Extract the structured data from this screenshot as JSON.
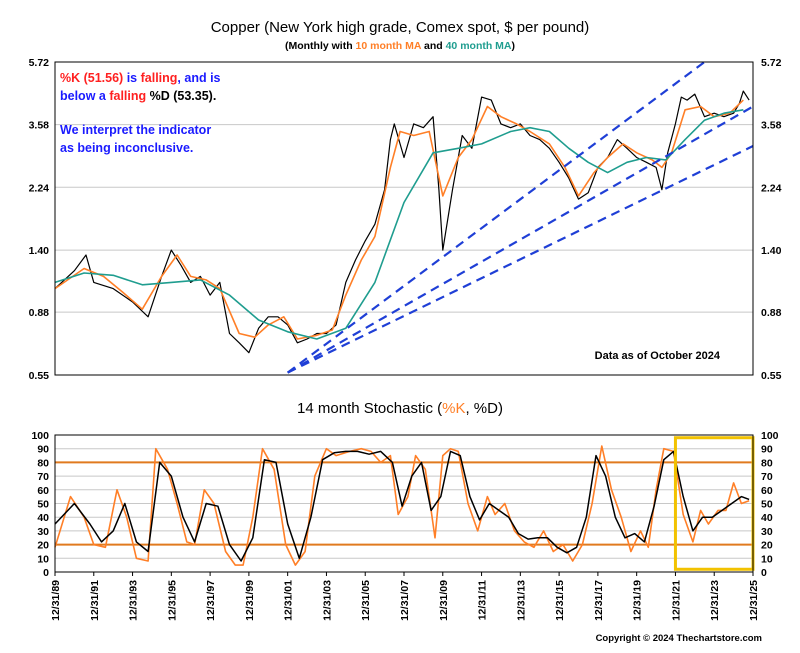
{
  "colors": {
    "background": "#ffffff",
    "price": "#000000",
    "ma10": "#ff7f27",
    "ma40": "#1f9d8f",
    "trendline": "#1f3fd6",
    "band": "#e07a1f",
    "highlight": "#f2c200",
    "grid": "#c8c8c8",
    "comment": "#1a1aff",
    "red": "#ff2020"
  },
  "texts": {
    "price_title": "Copper (New York high grade, Comex spot, $ per pound)",
    "sub_open": "(Monthly with ",
    "sub_ma10": "10 month MA",
    "sub_and": " and ",
    "sub_ma40": "40 month MA",
    "sub_close": ")",
    "stoch_title_a": "14 month Stochastic (",
    "stoch_title_b": "%K",
    "stoch_title_c": ", %D)",
    "data_as_of": "Data as of October 2024",
    "copyright": "Copyright © 2024 Thechartstore.com",
    "comment": {
      "l1a": "%K (51.56)",
      "l1b": " is ",
      "l1c": "falling",
      "l1d": ", and is",
      "l2a": "below a ",
      "l2b": "falling",
      "l2c": " %D (53.35).",
      "l3": "We interpret the indicator",
      "l4": "as being inconclusive."
    }
  },
  "chart_data": [
    {
      "type": "line",
      "title": "Copper (New York high grade, Comex spot, $ per pound)",
      "subtitle": "(Monthly with 10 month MA and 40 month MA)",
      "y_scale": "log",
      "ylim": [
        0.55,
        5.72
      ],
      "y_ticks": [
        "5.72",
        "3.58",
        "2.24",
        "1.40",
        "0.88",
        "0.55"
      ],
      "x_range": [
        1989.0,
        2025.0
      ],
      "grid": true,
      "series": [
        {
          "name": "Copper (monthly)",
          "x": [
            1989.0,
            1990.0,
            1990.6,
            1991.0,
            1992.0,
            1993.0,
            1993.8,
            1994.5,
            1995.0,
            1995.5,
            1996.0,
            1996.5,
            1997.0,
            1997.5,
            1998.0,
            1998.5,
            1999.0,
            1999.5,
            2000.0,
            2000.5,
            2001.0,
            2001.5,
            2002.0,
            2002.5,
            2003.0,
            2003.5,
            2004.0,
            2004.5,
            2005.0,
            2005.5,
            2006.0,
            2006.3,
            2006.5,
            2007.0,
            2007.5,
            2008.0,
            2008.5,
            2008.8,
            2009.0,
            2009.5,
            2010.0,
            2010.5,
            2011.0,
            2011.5,
            2012.0,
            2012.5,
            2013.0,
            2013.5,
            2014.0,
            2014.5,
            2015.0,
            2015.5,
            2016.0,
            2016.5,
            2017.0,
            2017.5,
            2018.0,
            2018.5,
            2019.0,
            2019.5,
            2020.0,
            2020.3,
            2020.6,
            2021.0,
            2021.3,
            2021.6,
            2022.0,
            2022.5,
            2023.0,
            2023.5,
            2024.0,
            2024.3,
            2024.5,
            2024.8
          ],
          "values": [
            1.05,
            1.2,
            1.35,
            1.1,
            1.05,
            0.95,
            0.85,
            1.15,
            1.4,
            1.25,
            1.1,
            1.15,
            1.0,
            1.1,
            0.75,
            0.7,
            0.65,
            0.78,
            0.85,
            0.85,
            0.8,
            0.7,
            0.72,
            0.75,
            0.75,
            0.8,
            1.1,
            1.3,
            1.5,
            1.7,
            2.2,
            3.2,
            3.6,
            2.8,
            3.6,
            3.5,
            3.8,
            2.2,
            1.4,
            2.2,
            3.3,
            3.0,
            4.4,
            4.3,
            3.6,
            3.5,
            3.6,
            3.3,
            3.2,
            3.0,
            2.7,
            2.4,
            2.05,
            2.15,
            2.6,
            2.8,
            3.2,
            3.0,
            2.8,
            2.7,
            2.6,
            2.2,
            2.9,
            3.6,
            4.4,
            4.3,
            4.5,
            3.8,
            3.9,
            3.8,
            3.9,
            4.2,
            4.6,
            4.3
          ]
        },
        {
          "name": "10 month MA",
          "x": [
            1989.0,
            1990.5,
            1991.5,
            1992.5,
            1993.5,
            1994.5,
            1995.3,
            1996.0,
            1996.8,
            1997.5,
            1998.5,
            1999.3,
            2000.0,
            2000.8,
            2001.5,
            2002.5,
            2003.3,
            2004.0,
            2004.8,
            2005.5,
            2006.3,
            2006.8,
            2007.5,
            2008.3,
            2009.0,
            2009.8,
            2010.5,
            2011.3,
            2012.0,
            2012.8,
            2013.5,
            2014.5,
            2015.3,
            2016.0,
            2016.8,
            2017.5,
            2018.3,
            2019.0,
            2019.8,
            2020.3,
            2020.8,
            2021.5,
            2022.3,
            2023.0,
            2023.8,
            2024.5
          ],
          "values": [
            1.05,
            1.22,
            1.15,
            1.02,
            0.9,
            1.15,
            1.35,
            1.15,
            1.12,
            1.05,
            0.75,
            0.73,
            0.8,
            0.85,
            0.72,
            0.74,
            0.77,
            1.0,
            1.3,
            1.55,
            2.6,
            3.4,
            3.3,
            3.4,
            2.1,
            2.8,
            3.2,
            4.1,
            3.8,
            3.6,
            3.4,
            3.1,
            2.6,
            2.1,
            2.5,
            2.8,
            3.1,
            2.9,
            2.75,
            2.6,
            2.9,
            4.0,
            4.1,
            3.8,
            3.9,
            4.3
          ]
        },
        {
          "name": "40 month MA",
          "x": [
            1989.0,
            1990.5,
            1992.0,
            1993.5,
            1995.0,
            1996.5,
            1998.0,
            1999.5,
            2001.0,
            2002.5,
            2004.0,
            2005.5,
            2007.0,
            2008.5,
            2009.8,
            2011.0,
            2012.5,
            2013.5,
            2014.5,
            2015.5,
            2016.5,
            2017.5,
            2018.5,
            2019.5,
            2020.5,
            2021.5,
            2022.5,
            2023.5,
            2024.5
          ],
          "values": [
            1.1,
            1.18,
            1.16,
            1.08,
            1.1,
            1.12,
            1.0,
            0.83,
            0.76,
            0.72,
            0.78,
            1.1,
            2.0,
            2.9,
            3.0,
            3.1,
            3.4,
            3.5,
            3.4,
            3.0,
            2.7,
            2.5,
            2.7,
            2.8,
            2.75,
            3.2,
            3.7,
            3.9,
            4.0
          ]
        }
      ],
      "trendlines": [
        {
          "x": [
            2001.0,
            2022.5
          ],
          "values": [
            0.56,
            5.72
          ]
        },
        {
          "x": [
            2001.0,
            2025.0
          ],
          "values": [
            0.56,
            4.1
          ]
        },
        {
          "x": [
            2001.0,
            2025.0
          ],
          "values": [
            0.56,
            3.05
          ]
        }
      ],
      "annotations": [
        "%K (51.56) is falling, and is below a falling %D (53.35).",
        "We interpret the indicator as being inconclusive.",
        "Data as of October 2024"
      ]
    },
    {
      "type": "line",
      "title": "14 month Stochastic (%K, %D)",
      "ylim": [
        0,
        100
      ],
      "y_ticks": [
        0,
        10,
        20,
        30,
        40,
        50,
        60,
        70,
        80,
        90,
        100
      ],
      "x_range": [
        1989.0,
        2025.0
      ],
      "x_tick_labels": [
        "12/31/89",
        "12/31/91",
        "12/31/93",
        "12/31/95",
        "12/31/97",
        "12/31/99",
        "12/31/01",
        "12/31/03",
        "12/31/05",
        "12/31/07",
        "12/31/09",
        "12/31/11",
        "12/31/13",
        "12/31/15",
        "12/31/17",
        "12/31/19",
        "12/31/21",
        "12/31/23",
        "12/31/25"
      ],
      "bands": [
        80,
        20
      ],
      "highlight": {
        "x": [
          2021.0,
          2025.0
        ],
        "y": [
          2,
          98
        ]
      },
      "grid": true,
      "series": [
        {
          "name": "%K",
          "x": [
            1989.0,
            1989.8,
            1990.5,
            1991.0,
            1991.6,
            1992.2,
            1992.7,
            1993.2,
            1993.8,
            1994.2,
            1994.8,
            1995.3,
            1995.8,
            1996.2,
            1996.7,
            1997.2,
            1997.8,
            1998.3,
            1998.7,
            1999.2,
            1999.7,
            2000.3,
            2000.9,
            2001.4,
            2001.9,
            2002.4,
            2003.0,
            2003.5,
            2004.2,
            2004.8,
            2005.3,
            2005.8,
            2006.3,
            2006.7,
            2007.2,
            2007.6,
            2008.1,
            2008.6,
            2009.0,
            2009.4,
            2009.8,
            2010.3,
            2010.8,
            2011.3,
            2011.7,
            2012.2,
            2012.7,
            2013.2,
            2013.7,
            2014.2,
            2014.7,
            2015.2,
            2015.7,
            2016.2,
            2016.7,
            2017.2,
            2017.7,
            2018.2,
            2018.7,
            2019.2,
            2019.6,
            2020.0,
            2020.4,
            2020.9,
            2021.4,
            2021.9,
            2022.3,
            2022.7,
            2023.2,
            2023.6,
            2024.0,
            2024.4,
            2024.8
          ],
          "values": [
            18,
            55,
            40,
            20,
            18,
            60,
            40,
            10,
            8,
            90,
            75,
            50,
            22,
            20,
            60,
            50,
            15,
            5,
            5,
            40,
            90,
            75,
            20,
            5,
            15,
            70,
            90,
            85,
            88,
            90,
            88,
            80,
            85,
            42,
            55,
            85,
            75,
            25,
            85,
            90,
            88,
            50,
            30,
            55,
            42,
            50,
            30,
            22,
            18,
            30,
            15,
            20,
            8,
            20,
            50,
            92,
            60,
            40,
            15,
            30,
            18,
            60,
            90,
            88,
            42,
            22,
            45,
            35,
            45,
            45,
            65,
            50,
            52
          ]
        },
        {
          "name": "%D",
          "x": [
            1989.0,
            1990.0,
            1990.8,
            1991.4,
            1992.0,
            1992.6,
            1993.2,
            1993.8,
            1994.4,
            1995.0,
            1995.6,
            1996.2,
            1996.8,
            1997.4,
            1998.0,
            1998.6,
            1999.2,
            1999.8,
            2000.4,
            2001.0,
            2001.6,
            2002.2,
            2002.8,
            2003.4,
            2004.0,
            2004.6,
            2005.2,
            2005.8,
            2006.4,
            2006.9,
            2007.4,
            2007.9,
            2008.4,
            2008.9,
            2009.4,
            2009.9,
            2010.4,
            2010.9,
            2011.4,
            2011.9,
            2012.4,
            2012.9,
            2013.4,
            2013.9,
            2014.4,
            2014.9,
            2015.4,
            2015.9,
            2016.4,
            2016.9,
            2017.4,
            2017.9,
            2018.4,
            2018.9,
            2019.4,
            2019.9,
            2020.4,
            2020.9,
            2021.4,
            2021.9,
            2022.4,
            2022.9,
            2023.4,
            2023.9,
            2024.4,
            2024.8
          ],
          "values": [
            35,
            50,
            35,
            22,
            30,
            50,
            22,
            15,
            80,
            70,
            40,
            22,
            50,
            48,
            20,
            8,
            25,
            82,
            80,
            35,
            10,
            40,
            82,
            87,
            88,
            88,
            86,
            88,
            80,
            48,
            70,
            80,
            45,
            55,
            88,
            85,
            55,
            38,
            50,
            45,
            40,
            28,
            24,
            25,
            25,
            18,
            14,
            18,
            40,
            85,
            70,
            40,
            25,
            28,
            22,
            48,
            82,
            88,
            55,
            30,
            40,
            40,
            45,
            50,
            55,
            53
          ]
        }
      ]
    }
  ]
}
